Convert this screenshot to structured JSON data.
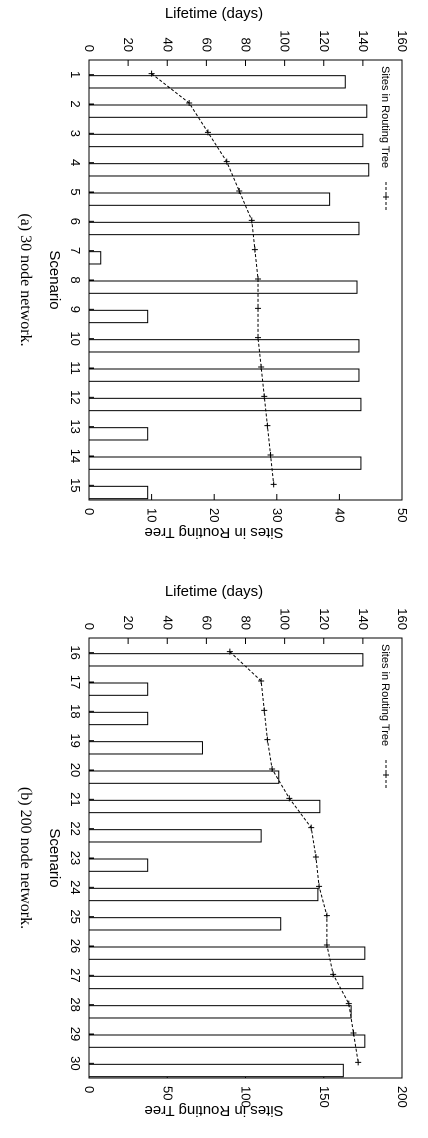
{
  "chart_data": [
    {
      "type": "bar",
      "title": "",
      "xlabel": "Scenario",
      "ylabel": "Lifetime (days)",
      "y2label": "Sites in Routing Tree",
      "ylim": [
        0,
        160
      ],
      "y2lim": [
        0,
        50
      ],
      "yticks": [
        "0",
        "20",
        "40",
        "60",
        "80",
        "100",
        "120",
        "140",
        "160"
      ],
      "y2ticks": [
        "0",
        "10",
        "20",
        "30",
        "40",
        "50"
      ],
      "categories": [
        "1",
        "2",
        "3",
        "4",
        "5",
        "6",
        "7",
        "8",
        "9",
        "10",
        "11",
        "12",
        "13",
        "14",
        "15"
      ],
      "series": [
        {
          "kind": "bar",
          "values": [
            131,
            142,
            140,
            143,
            123,
            138,
            6,
            137,
            30,
            138,
            138,
            139,
            30,
            139,
            30
          ]
        },
        {
          "kind": "line",
          "axis": "right",
          "name": "Sites in Routing Tree",
          "values": [
            10,
            16,
            19,
            22,
            24,
            26,
            26.5,
            27,
            27,
            27,
            27.5,
            28,
            28.5,
            29,
            29.5
          ]
        }
      ],
      "legend": {
        "label": "Sites in Routing Tree",
        "position": "top-left"
      },
      "caption": "(a)  30 node network."
    },
    {
      "type": "bar",
      "title": "",
      "xlabel": "Scenario",
      "ylabel": "Lifetime (days)",
      "y2label": "Sites in Routing Tree",
      "ylim": [
        0,
        160
      ],
      "y2lim": [
        0,
        200
      ],
      "yticks": [
        "0",
        "20",
        "40",
        "60",
        "80",
        "100",
        "120",
        "140",
        "160"
      ],
      "y2ticks": [
        "0",
        "50",
        "100",
        "150",
        "200"
      ],
      "categories": [
        "16",
        "17",
        "18",
        "19",
        "20",
        "21",
        "22",
        "23",
        "24",
        "25",
        "26",
        "27",
        "28",
        "29",
        "30"
      ],
      "series": [
        {
          "kind": "bar",
          "values": [
            140,
            30,
            30,
            58,
            97,
            118,
            88,
            30,
            117,
            98,
            141,
            140,
            134,
            141,
            130
          ]
        },
        {
          "kind": "line",
          "axis": "right",
          "name": "Sites in Routing Tree",
          "values": [
            90,
            110,
            112,
            114,
            117,
            128,
            142,
            145,
            147,
            152,
            152,
            156,
            166,
            169,
            172
          ]
        }
      ],
      "legend": {
        "label": "Sites in Routing Tree",
        "position": "top-left"
      },
      "caption": "(b)  200 node network."
    }
  ]
}
